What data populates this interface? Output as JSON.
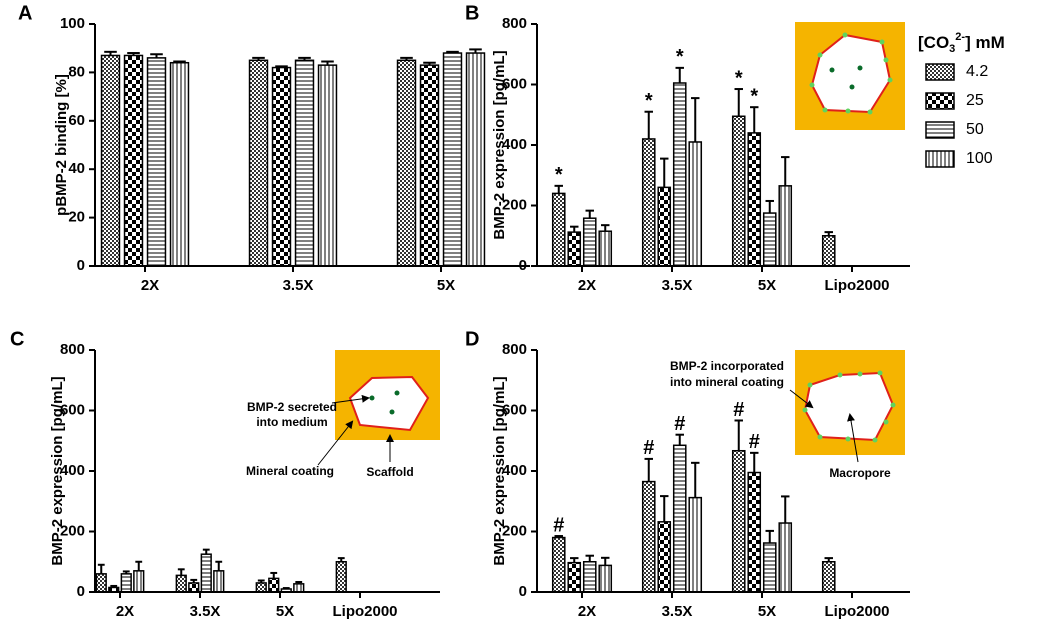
{
  "chart_data": [
    {
      "type": "bar",
      "panel_label": "A",
      "y_label": "pBMP-2 binding [%]",
      "categories": [
        "2X",
        "3.5X",
        "5X"
      ],
      "ylim": [
        0,
        100
      ],
      "yticks": [
        0,
        20,
        40,
        60,
        80,
        100
      ],
      "series": [
        {
          "name": "4.2",
          "color": "#000000",
          "pattern": "small-checker",
          "values": [
            87,
            85,
            85
          ],
          "errors": [
            1.5,
            1,
            1
          ]
        },
        {
          "name": "25",
          "color": "#000000",
          "pattern": "checker",
          "values": [
            87,
            82,
            83
          ],
          "errors": [
            1,
            0.5,
            1
          ]
        },
        {
          "name": "50",
          "color": "#000000",
          "pattern": "hlines",
          "values": [
            86,
            85,
            88
          ],
          "errors": [
            1.5,
            1,
            0.5
          ]
        },
        {
          "name": "100",
          "color": "#000000",
          "pattern": "vlines",
          "values": [
            84,
            83,
            88
          ],
          "errors": [
            0.5,
            1.5,
            1.5
          ]
        }
      ]
    },
    {
      "type": "bar",
      "panel_label": "B",
      "y_label": "BMP-2 expression [pg/mL]",
      "categories": [
        "2X",
        "3.5X",
        "5X",
        "Lipo2000"
      ],
      "ylim": [
        0,
        800
      ],
      "yticks": [
        0,
        200,
        400,
        600,
        800
      ],
      "legend_title": [
        "[CO",
        "3",
        "2-",
        "] mM"
      ],
      "series": [
        {
          "name": "4.2",
          "color": "#000000",
          "pattern": "small-checker",
          "values": [
            240,
            420,
            495,
            100
          ],
          "errors": [
            25,
            90,
            90,
            12
          ],
          "marks": [
            "*",
            "*",
            "*",
            null
          ]
        },
        {
          "name": "25",
          "color": "#000000",
          "pattern": "checker",
          "values": [
            112,
            260,
            440,
            null
          ],
          "errors": [
            18,
            95,
            85,
            null
          ],
          "marks": [
            null,
            null,
            "*",
            null
          ]
        },
        {
          "name": "50",
          "color": "#000000",
          "pattern": "hlines",
          "values": [
            158,
            605,
            175,
            null
          ],
          "errors": [
            25,
            50,
            40,
            null
          ],
          "marks": [
            null,
            "*",
            null,
            null
          ]
        },
        {
          "name": "100",
          "color": "#000000",
          "pattern": "vlines",
          "values": [
            115,
            410,
            265,
            null
          ],
          "errors": [
            20,
            145,
            95,
            null
          ]
        }
      ]
    },
    {
      "type": "bar",
      "panel_label": "C",
      "y_label": "BMP-2 expression [pg/mL]",
      "categories": [
        "2X",
        "3.5X",
        "5X",
        "Lipo2000"
      ],
      "ylim": [
        0,
        800
      ],
      "yticks": [
        0,
        200,
        400,
        600,
        800
      ],
      "inset_labels": [
        [
          "BMP-2 secreted",
          "into medium"
        ],
        [
          "Mineral coating"
        ],
        [
          "Scaffold"
        ]
      ],
      "series": [
        {
          "name": "4.2",
          "color": "#000000",
          "pattern": "small-checker",
          "values": [
            60,
            55,
            30,
            100
          ],
          "errors": [
            30,
            20,
            8,
            12
          ]
        },
        {
          "name": "25",
          "color": "#000000",
          "pattern": "checker",
          "values": [
            15,
            30,
            45,
            null
          ],
          "errors": [
            5,
            10,
            18,
            null
          ]
        },
        {
          "name": "50",
          "color": "#000000",
          "pattern": "hlines",
          "values": [
            60,
            125,
            10,
            null
          ],
          "errors": [
            8,
            15,
            3,
            null
          ]
        },
        {
          "name": "100",
          "color": "#000000",
          "pattern": "vlines",
          "values": [
            70,
            70,
            27,
            null
          ],
          "errors": [
            30,
            30,
            6,
            null
          ]
        }
      ]
    },
    {
      "type": "bar",
      "panel_label": "D",
      "y_label": "BMP-2 expression [pg/mL]",
      "categories": [
        "2X",
        "3.5X",
        "5X",
        "Lipo2000"
      ],
      "ylim": [
        0,
        800
      ],
      "yticks": [
        0,
        200,
        400,
        600,
        800
      ],
      "inset_labels": [
        [
          "BMP-2 incorporated",
          "into mineral coating"
        ],
        [
          "Macropore"
        ]
      ],
      "series": [
        {
          "name": "4.2",
          "color": "#000000",
          "pattern": "small-checker",
          "values": [
            180,
            365,
            467,
            100
          ],
          "errors": [
            5,
            75,
            100,
            12
          ],
          "marks": [
            "#",
            "#",
            "#",
            null
          ]
        },
        {
          "name": "25",
          "color": "#000000",
          "pattern": "checker",
          "values": [
            97,
            232,
            395,
            null
          ],
          "errors": [
            15,
            85,
            65,
            null
          ],
          "marks": [
            null,
            null,
            "#",
            null
          ]
        },
        {
          "name": "50",
          "color": "#000000",
          "pattern": "hlines",
          "values": [
            100,
            485,
            162,
            null
          ],
          "errors": [
            20,
            35,
            40,
            null
          ],
          "marks": [
            null,
            "#",
            null,
            null
          ]
        },
        {
          "name": "100",
          "color": "#000000",
          "pattern": "vlines",
          "values": [
            88,
            312,
            228,
            null
          ],
          "errors": [
            25,
            115,
            88,
            null
          ]
        }
      ]
    }
  ]
}
